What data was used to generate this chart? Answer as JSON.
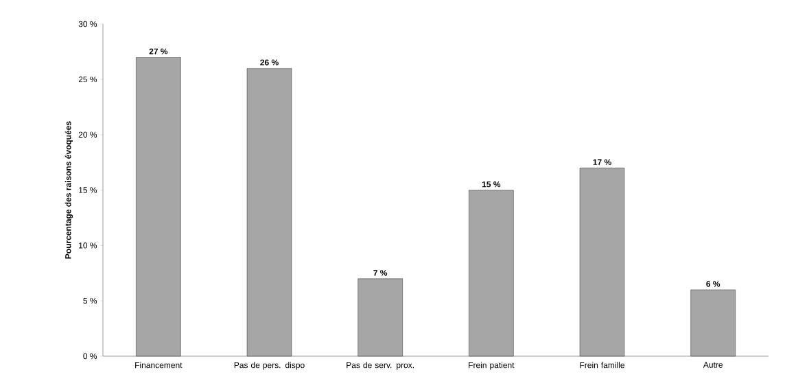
{
  "chart_data": {
    "type": "bar",
    "ylabel": "Pourcentage des raisons évoquées",
    "categories": [
      "Financement",
      "Pas de pers. dispo",
      "Pas de serv. prox.",
      "Frein patient",
      "Frein famille",
      "Autre"
    ],
    "values": [
      27,
      26,
      7,
      15,
      17,
      6
    ],
    "value_labels": [
      "27 %",
      "26 %",
      "7 %",
      "15 %",
      "17 %",
      "6 %"
    ],
    "color": "#a6a6a6",
    "ylim": [
      0,
      30
    ],
    "yticks": [
      {
        "value": 0,
        "label": "0 %"
      },
      {
        "value": 5,
        "label": "5 %"
      },
      {
        "value": 10,
        "label": "10 %"
      },
      {
        "value": 15,
        "label": "15 %"
      },
      {
        "value": 20,
        "label": "20 %"
      },
      {
        "value": 25,
        "label": "25 %"
      },
      {
        "value": 30,
        "label": "30 %"
      }
    ],
    "grid": false
  }
}
